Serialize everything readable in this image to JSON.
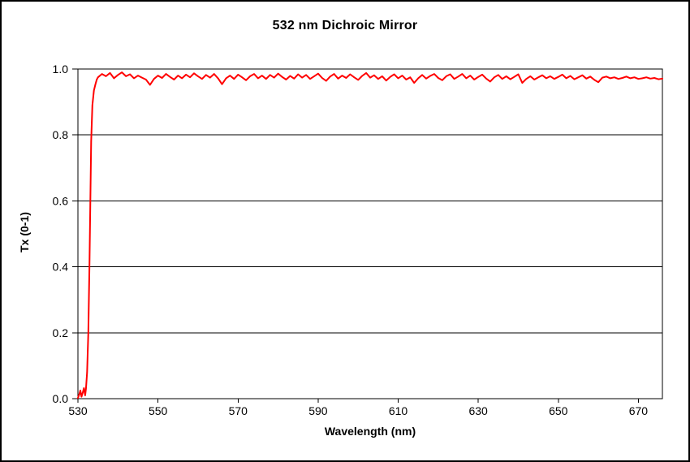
{
  "chart_data": {
    "type": "line",
    "title": "532 nm Dichroic Mirror",
    "xlabel": "Wavelength (nm)",
    "ylabel": "Tx (0-1)",
    "xlim": [
      530,
      676
    ],
    "ylim": [
      0,
      1
    ],
    "x_ticks": [
      530,
      550,
      570,
      590,
      610,
      630,
      650,
      670
    ],
    "x_tick_labels": [
      "530",
      "550",
      "570",
      "590",
      "610",
      "630",
      "650",
      "670"
    ],
    "y_ticks": [
      0,
      0.2,
      0.4,
      0.6,
      0.8,
      1.0
    ],
    "y_tick_labels": [
      "0.0",
      "0.2",
      "0.4",
      "0.6",
      "0.8",
      "1.0"
    ],
    "grid": "horizontal",
    "legend": "none",
    "colors": {
      "line": "#FF0000",
      "axis": "#000000",
      "grid": "#000000",
      "background": "#FFFFFF",
      "frame_border": "#000000"
    },
    "series": [
      {
        "name": "Tx",
        "points": [
          [
            530,
            0.002
          ],
          [
            530.3,
            0.012
          ],
          [
            530.6,
            0.025
          ],
          [
            530.9,
            0.006
          ],
          [
            531.2,
            0.018
          ],
          [
            531.5,
            0.032
          ],
          [
            531.8,
            0.01
          ],
          [
            532,
            0.03
          ],
          [
            532.3,
            0.08
          ],
          [
            532.6,
            0.2
          ],
          [
            532.9,
            0.42
          ],
          [
            533.1,
            0.6
          ],
          [
            533.3,
            0.78
          ],
          [
            533.6,
            0.89
          ],
          [
            534,
            0.935
          ],
          [
            534.4,
            0.955
          ],
          [
            534.7,
            0.968
          ],
          [
            535,
            0.975
          ],
          [
            536,
            0.985
          ],
          [
            537,
            0.978
          ],
          [
            538,
            0.988
          ],
          [
            539,
            0.972
          ],
          [
            540,
            0.982
          ],
          [
            541,
            0.99
          ],
          [
            542,
            0.978
          ],
          [
            543,
            0.984
          ],
          [
            544,
            0.972
          ],
          [
            545,
            0.98
          ],
          [
            546,
            0.974
          ],
          [
            547,
            0.968
          ],
          [
            548,
            0.952
          ],
          [
            549,
            0.97
          ],
          [
            550,
            0.98
          ],
          [
            551,
            0.973
          ],
          [
            552,
            0.985
          ],
          [
            553,
            0.976
          ],
          [
            554,
            0.968
          ],
          [
            555,
            0.98
          ],
          [
            556,
            0.972
          ],
          [
            557,
            0.983
          ],
          [
            558,
            0.975
          ],
          [
            559,
            0.987
          ],
          [
            560,
            0.978
          ],
          [
            561,
            0.97
          ],
          [
            562,
            0.982
          ],
          [
            563,
            0.974
          ],
          [
            564,
            0.985
          ],
          [
            565,
            0.972
          ],
          [
            566,
            0.954
          ],
          [
            567,
            0.972
          ],
          [
            568,
            0.98
          ],
          [
            569,
            0.97
          ],
          [
            570,
            0.983
          ],
          [
            571,
            0.975
          ],
          [
            572,
            0.966
          ],
          [
            573,
            0.978
          ],
          [
            574,
            0.985
          ],
          [
            575,
            0.972
          ],
          [
            576,
            0.98
          ],
          [
            577,
            0.97
          ],
          [
            578,
            0.982
          ],
          [
            579,
            0.974
          ],
          [
            580,
            0.986
          ],
          [
            581,
            0.976
          ],
          [
            582,
            0.968
          ],
          [
            583,
            0.979
          ],
          [
            584,
            0.971
          ],
          [
            585,
            0.984
          ],
          [
            586,
            0.974
          ],
          [
            587,
            0.982
          ],
          [
            588,
            0.97
          ],
          [
            589,
            0.978
          ],
          [
            590,
            0.986
          ],
          [
            591,
            0.973
          ],
          [
            592,
            0.964
          ],
          [
            593,
            0.977
          ],
          [
            594,
            0.985
          ],
          [
            595,
            0.971
          ],
          [
            596,
            0.98
          ],
          [
            597,
            0.973
          ],
          [
            598,
            0.984
          ],
          [
            599,
            0.975
          ],
          [
            600,
            0.967
          ],
          [
            601,
            0.979
          ],
          [
            602,
            0.988
          ],
          [
            603,
            0.974
          ],
          [
            604,
            0.981
          ],
          [
            605,
            0.97
          ],
          [
            606,
            0.978
          ],
          [
            607,
            0.965
          ],
          [
            608,
            0.976
          ],
          [
            609,
            0.984
          ],
          [
            610,
            0.972
          ],
          [
            611,
            0.98
          ],
          [
            612,
            0.968
          ],
          [
            613,
            0.975
          ],
          [
            614,
            0.958
          ],
          [
            615,
            0.972
          ],
          [
            616,
            0.982
          ],
          [
            617,
            0.971
          ],
          [
            618,
            0.979
          ],
          [
            619,
            0.985
          ],
          [
            620,
            0.973
          ],
          [
            621,
            0.966
          ],
          [
            622,
            0.978
          ],
          [
            623,
            0.984
          ],
          [
            624,
            0.97
          ],
          [
            625,
            0.977
          ],
          [
            626,
            0.985
          ],
          [
            627,
            0.972
          ],
          [
            628,
            0.98
          ],
          [
            629,
            0.968
          ],
          [
            630,
            0.976
          ],
          [
            631,
            0.983
          ],
          [
            632,
            0.971
          ],
          [
            633,
            0.962
          ],
          [
            634,
            0.975
          ],
          [
            635,
            0.982
          ],
          [
            636,
            0.97
          ],
          [
            637,
            0.978
          ],
          [
            638,
            0.969
          ],
          [
            639,
            0.976
          ],
          [
            640,
            0.984
          ],
          [
            641,
            0.958
          ],
          [
            642,
            0.97
          ],
          [
            643,
            0.978
          ],
          [
            644,
            0.968
          ],
          [
            645,
            0.975
          ],
          [
            646,
            0.981
          ],
          [
            647,
            0.972
          ],
          [
            648,
            0.978
          ],
          [
            649,
            0.97
          ],
          [
            650,
            0.976
          ],
          [
            651,
            0.983
          ],
          [
            652,
            0.972
          ],
          [
            653,
            0.979
          ],
          [
            654,
            0.969
          ],
          [
            655,
            0.975
          ],
          [
            656,
            0.981
          ],
          [
            657,
            0.971
          ],
          [
            658,
            0.977
          ],
          [
            659,
            0.967
          ],
          [
            660,
            0.96
          ],
          [
            661,
            0.974
          ],
          [
            662,
            0.977
          ],
          [
            663,
            0.972
          ],
          [
            664,
            0.975
          ],
          [
            665,
            0.97
          ],
          [
            666,
            0.973
          ],
          [
            667,
            0.977
          ],
          [
            668,
            0.972
          ],
          [
            669,
            0.975
          ],
          [
            670,
            0.97
          ],
          [
            671,
            0.972
          ],
          [
            672,
            0.975
          ],
          [
            673,
            0.971
          ],
          [
            674,
            0.973
          ],
          [
            675,
            0.969
          ],
          [
            676,
            0.971
          ]
        ]
      }
    ]
  }
}
